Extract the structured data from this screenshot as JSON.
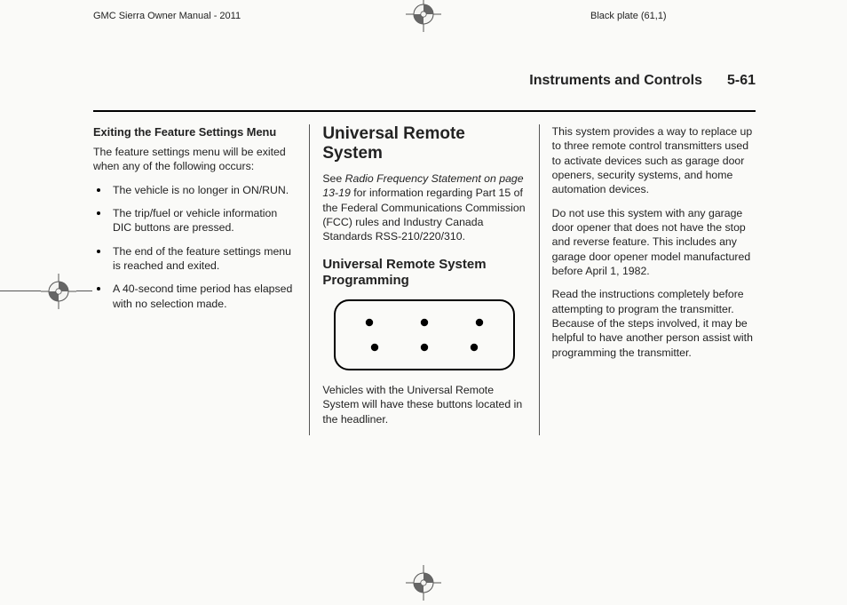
{
  "meta": {
    "manual": "GMC Sierra Owner Manual - 2011",
    "plate": "Black plate (61,1)"
  },
  "header": {
    "section": "Instruments and Controls",
    "page": "5-61"
  },
  "col1": {
    "h": "Exiting the Feature Settings Menu",
    "intro": "The feature settings menu will be exited when any of the following occurs:",
    "items": [
      "The vehicle is no longer in ON/RUN.",
      "The trip/fuel or vehicle information DIC buttons are pressed.",
      "The end of the feature settings menu is reached and exited.",
      "A 40-second time period has elapsed with no selection made."
    ]
  },
  "col2": {
    "h_main": "Universal Remote System",
    "p1_a": "See ",
    "p1_ital": "Radio Frequency Statement on page 13-19",
    "p1_b": " for information regarding Part 15 of the Federal Communications Commission (FCC) rules and Industry Canada Standards RSS-210/220/310.",
    "h_sub": "Universal Remote System Programming",
    "illustration": {
      "outline_color": "#000000",
      "dot_color": "#000000",
      "rows": 2,
      "cols": 3,
      "corner_radius": 14,
      "stroke_width": 2,
      "dot_radius": 4.2
    },
    "p2": "Vehicles with the Universal Remote System will have these buttons located in the headliner."
  },
  "col3": {
    "p1": "This system provides a way to replace up to three remote control transmitters used to activate devices such as garage door openers, security systems, and home automation devices.",
    "p2": "Do not use this system with any garage door opener that does not have the stop and reverse feature. This includes any garage door opener model manufactured before April 1, 1982.",
    "p3": "Read the instructions completely before attempting to program the transmitter. Because of the steps involved, it may be helpful to have another person assist with programming the transmitter."
  },
  "reg_mark": {
    "stroke": "#555555",
    "fill_light": "#f4f4f2",
    "fill_dark": "#666666"
  }
}
